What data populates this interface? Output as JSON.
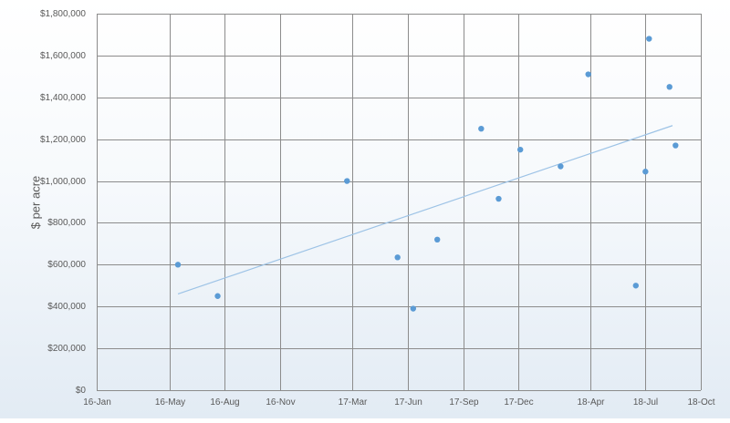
{
  "chart_data": {
    "type": "scatter",
    "title": "",
    "xlabel": "",
    "ylabel": "$ per acre",
    "x_axis_type": "date",
    "xlim": [
      "2016-01-01",
      "2018-10-01"
    ],
    "ylim": [
      0,
      1800000
    ],
    "grid": true,
    "legend": "none",
    "x_ticks": [
      {
        "date": "2016-01-01",
        "label": "16-Jan"
      },
      {
        "date": "2016-05-01",
        "label": "16-May"
      },
      {
        "date": "2016-08-01",
        "label": "16-Aug"
      },
      {
        "date": "2016-11-01",
        "label": "16-Nov"
      },
      {
        "date": "2017-03-01",
        "label": "17-Mar"
      },
      {
        "date": "2017-06-01",
        "label": "17-Jun"
      },
      {
        "date": "2017-09-01",
        "label": "17-Sep"
      },
      {
        "date": "2017-12-01",
        "label": "17-Dec"
      },
      {
        "date": "2018-04-01",
        "label": "18-Apr"
      },
      {
        "date": "2018-07-01",
        "label": "18-Jul"
      },
      {
        "date": "2018-10-01",
        "label": "18-Oct"
      }
    ],
    "y_ticks": [
      {
        "value": 0,
        "label": "$0"
      },
      {
        "value": 200000,
        "label": "$200,000"
      },
      {
        "value": 400000,
        "label": "$400,000"
      },
      {
        "value": 600000,
        "label": "$600,000"
      },
      {
        "value": 800000,
        "label": "$800,000"
      },
      {
        "value": 1000000,
        "label": "$1,000,000"
      },
      {
        "value": 1200000,
        "label": "$1,200,000"
      },
      {
        "value": 1400000,
        "label": "$1,400,000"
      },
      {
        "value": 1600000,
        "label": "$1,600,000"
      },
      {
        "value": 1800000,
        "label": "$1,800,000"
      }
    ],
    "series": [
      {
        "color": "#5b9bd5",
        "points": [
          {
            "x": "2016-05-15",
            "y": 600000
          },
          {
            "x": "2016-07-20",
            "y": 450000
          },
          {
            "x": "2017-02-20",
            "y": 1000000
          },
          {
            "x": "2017-05-15",
            "y": 635000
          },
          {
            "x": "2017-06-10",
            "y": 390000
          },
          {
            "x": "2017-07-20",
            "y": 720000
          },
          {
            "x": "2017-10-01",
            "y": 1250000
          },
          {
            "x": "2017-10-30",
            "y": 915000
          },
          {
            "x": "2017-12-05",
            "y": 1150000
          },
          {
            "x": "2018-02-10",
            "y": 1070000
          },
          {
            "x": "2018-03-28",
            "y": 1510000
          },
          {
            "x": "2018-06-15",
            "y": 500000
          },
          {
            "x": "2018-07-01",
            "y": 1045000
          },
          {
            "x": "2018-07-07",
            "y": 1680000
          },
          {
            "x": "2018-08-10",
            "y": 1450000
          },
          {
            "x": "2018-08-20",
            "y": 1170000
          }
        ]
      }
    ],
    "trendline": {
      "type": "linear",
      "color": "#9dc3e6",
      "from": {
        "x": "2016-05-15",
        "y": 460000
      },
      "to": {
        "x": "2018-08-15",
        "y": 1265000
      }
    }
  }
}
